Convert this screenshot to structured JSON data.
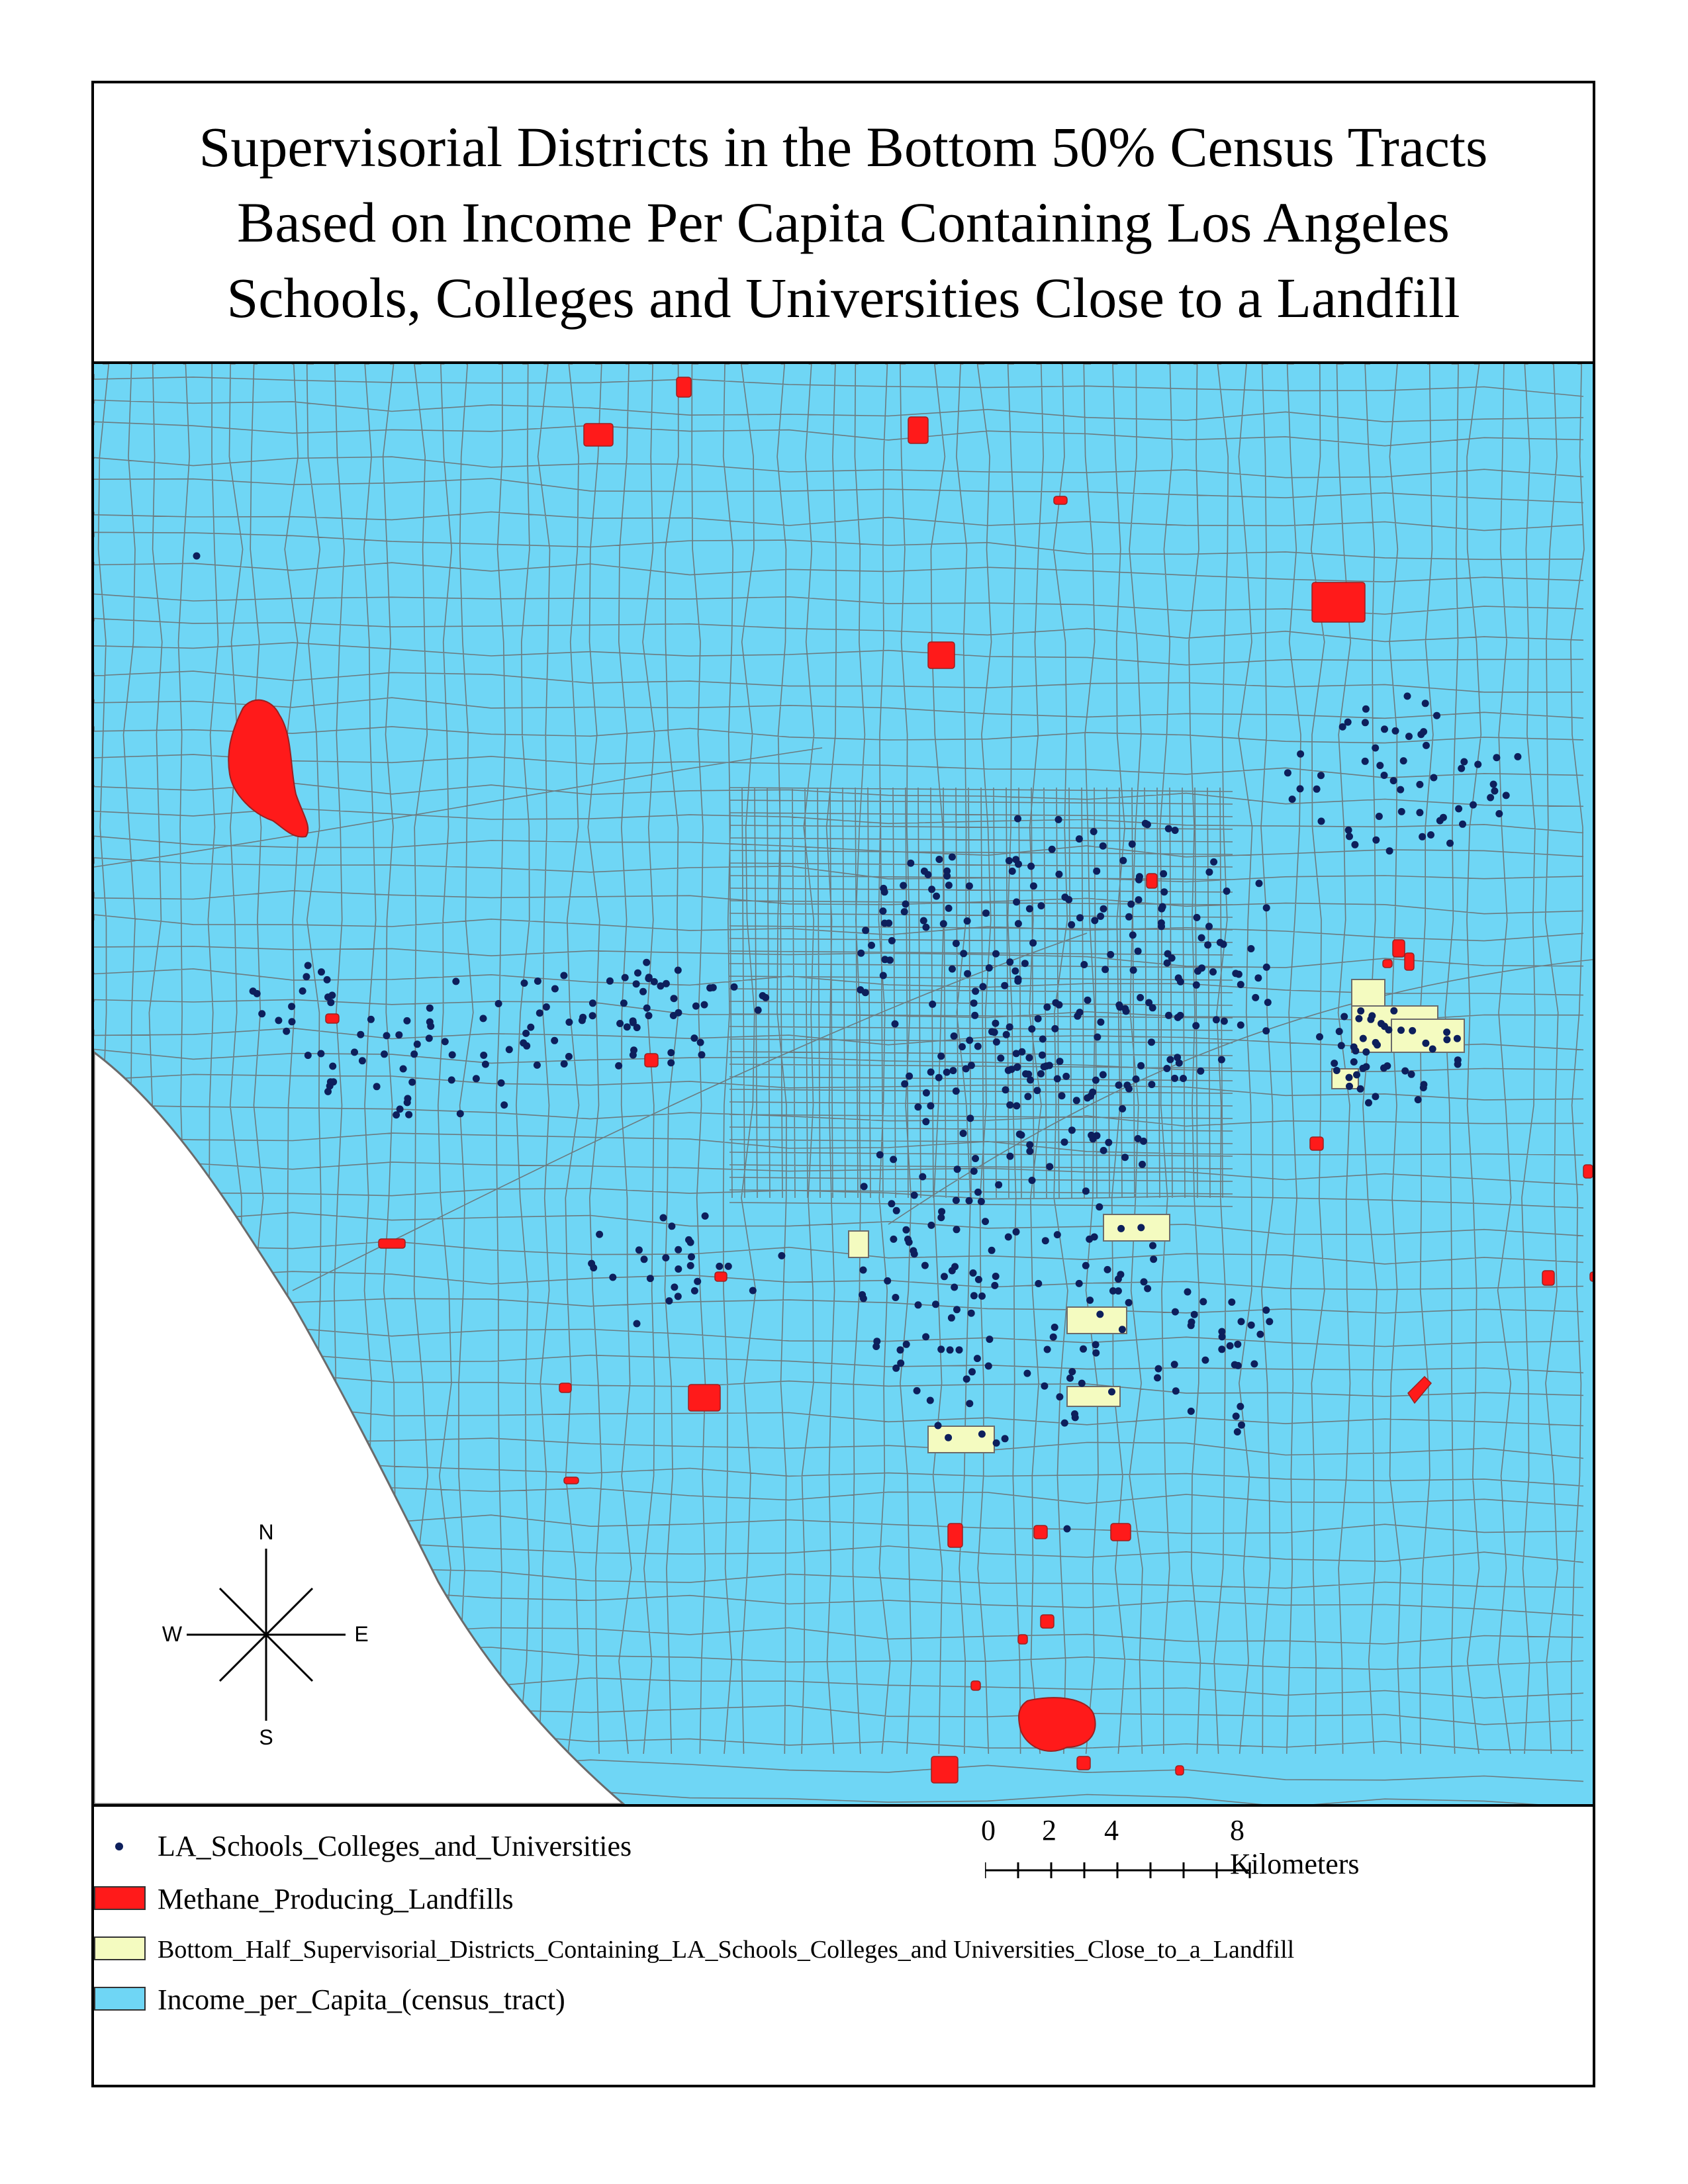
{
  "title_lines": [
    "Supervisorial Districts in the Bottom 50% Census Tracts",
    "Based on Income Per Capita Containing Los Angeles",
    "Schools, Colleges and Universities Close to a Landfill"
  ],
  "compass": {
    "n": "N",
    "s": "S",
    "e": "E",
    "w": "W"
  },
  "scale_bar": {
    "labels": [
      "0",
      "2",
      "4",
      "8 Kilometers"
    ]
  },
  "legend": [
    {
      "label": "LA_Schools_Colleges_and_Universities",
      "symbol": "dot",
      "color": "#0d1f5c"
    },
    {
      "label": "Methane_Producing_Landfills",
      "symbol": "box",
      "color": "#ff1a1a"
    },
    {
      "label": "Bottom_Half_Supervisorial_Districts_Containing_LA_Schools_Colleges_and Universities_Close_to_a_Landfill",
      "symbol": "box",
      "color": "#f4fbc0"
    },
    {
      "label": "Income_per_Capita_(census_tract)",
      "symbol": "box",
      "color": "#6fd6f5"
    }
  ],
  "colors": {
    "census_tract_fill": "#6fd6f5",
    "tract_border": "#6b6b6b",
    "landfill": "#ff1a1a",
    "bottom_half_district": "#f4fbc0",
    "school_dot": "#0d1f5c",
    "ocean": "#ffffff"
  }
}
